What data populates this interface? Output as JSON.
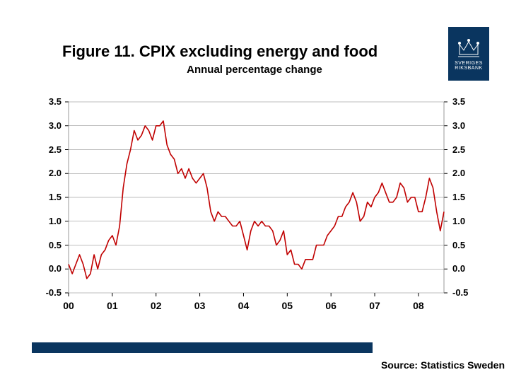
{
  "title": "Figure 11. CPIX excluding energy and food",
  "subtitle": "Annual percentage change",
  "source": "Source: Statistics Sweden",
  "logo": {
    "line1": "SVERIGES",
    "line2": "RIKSBANK"
  },
  "chart": {
    "type": "line",
    "background_color": "#ffffff",
    "grid_color": "#7f7f7f",
    "tick_color": "#000000",
    "line_color": "#c00000",
    "line_width": 1.6,
    "ylim": [
      -0.5,
      3.5
    ],
    "ytick_step": 0.5,
    "y_ticks": [
      "3.5",
      "3.0",
      "2.5",
      "2.0",
      "1.5",
      "1.0",
      "0.5",
      "0.0",
      "-0.5"
    ],
    "x_ticks": [
      "00",
      "01",
      "02",
      "03",
      "04",
      "05",
      "06",
      "07",
      "08"
    ],
    "x_count": 104,
    "series": [
      0.1,
      -0.1,
      0.1,
      0.3,
      0.1,
      -0.2,
      -0.1,
      0.3,
      0.0,
      0.3,
      0.4,
      0.6,
      0.7,
      0.5,
      0.9,
      1.7,
      2.2,
      2.5,
      2.9,
      2.7,
      2.8,
      3.0,
      2.9,
      2.7,
      3.0,
      3.0,
      3.1,
      2.6,
      2.4,
      2.3,
      2.0,
      2.1,
      1.9,
      2.1,
      1.9,
      1.8,
      1.9,
      2.0,
      1.7,
      1.2,
      1.0,
      1.2,
      1.1,
      1.1,
      1.0,
      0.9,
      0.9,
      1.0,
      0.7,
      0.4,
      0.8,
      1.0,
      0.9,
      1.0,
      0.9,
      0.9,
      0.8,
      0.5,
      0.6,
      0.8,
      0.3,
      0.4,
      0.1,
      0.1,
      0.0,
      0.2,
      0.2,
      0.2,
      0.5,
      0.5,
      0.5,
      0.7,
      0.8,
      0.9,
      1.1,
      1.1,
      1.3,
      1.4,
      1.6,
      1.4,
      1.0,
      1.1,
      1.4,
      1.3,
      1.5,
      1.6,
      1.8,
      1.6,
      1.4,
      1.4,
      1.5,
      1.8,
      1.7,
      1.4,
      1.5,
      1.5,
      1.2,
      1.2,
      1.5,
      1.9,
      1.7,
      1.2,
      0.8,
      1.2
    ]
  }
}
